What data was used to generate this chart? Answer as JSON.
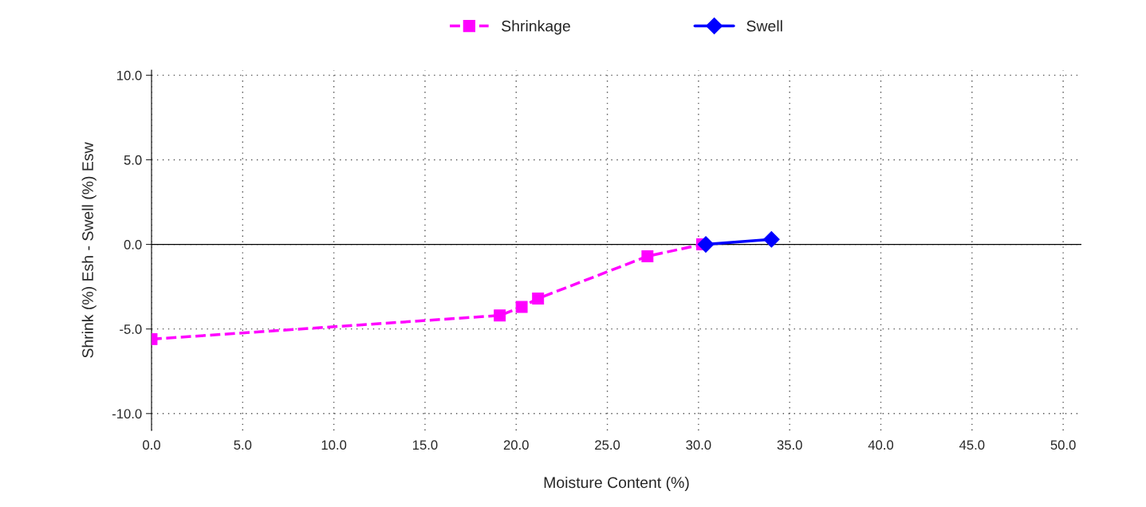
{
  "chart_data": {
    "type": "line",
    "xlabel": "Moisture Content (%)",
    "ylabel": "Shrink (%) Esh - Swell (%) Esw",
    "series": [
      {
        "name": "Shrinkage",
        "color": "#ff00ff",
        "marker": "square",
        "line_style": "dashed",
        "x": [
          0.0,
          19.1,
          20.3,
          21.2,
          27.2,
          30.2
        ],
        "values": [
          -5.6,
          -4.2,
          -3.7,
          -3.2,
          -0.7,
          0.0
        ]
      },
      {
        "name": "Swell",
        "color": "#0000ff",
        "marker": "diamond",
        "line_style": "solid",
        "x": [
          30.4,
          34.0
        ],
        "values": [
          0.0,
          0.3
        ]
      }
    ],
    "xlim": [
      0,
      51
    ],
    "xticks": [
      {
        "value": 0,
        "label": "0.0"
      },
      {
        "value": 5,
        "label": "5.0"
      },
      {
        "value": 10,
        "label": "10.0"
      },
      {
        "value": 15,
        "label": "15.0"
      },
      {
        "value": 20,
        "label": "20.0"
      },
      {
        "value": 25,
        "label": "25.0"
      },
      {
        "value": 30,
        "label": "30.0"
      },
      {
        "value": 35,
        "label": "35.0"
      },
      {
        "value": 40,
        "label": "40.0"
      },
      {
        "value": 45,
        "label": "45.0"
      },
      {
        "value": 50,
        "label": "50.0"
      }
    ],
    "ylim": [
      -11,
      10.3
    ],
    "yticks": [
      {
        "value": -10,
        "label": "-10.0"
      },
      {
        "value": -5,
        "label": "-5.0"
      },
      {
        "value": 0,
        "label": "0.0"
      },
      {
        "value": 5,
        "label": "5.0"
      },
      {
        "value": 10,
        "label": "10.0"
      }
    ],
    "ref_lines": [
      {
        "axis": "y",
        "value": 0,
        "color": "#000000",
        "line_style": "solid"
      }
    ],
    "grid": true,
    "legend": "top"
  }
}
